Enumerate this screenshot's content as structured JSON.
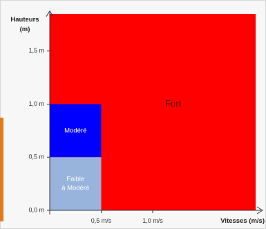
{
  "chart_data": {
    "type": "area",
    "ylabel_lines": [
      "Hauteurs",
      "(m)"
    ],
    "xlabel": "Vitesses (m/s)",
    "xlim": [
      0,
      2.0
    ],
    "ylim": [
      0,
      1.85
    ],
    "x_ticks": [
      {
        "value": 0.5,
        "label": "0,5 m/s"
      },
      {
        "value": 1.0,
        "label": "1,0 m/s"
      }
    ],
    "y_ticks": [
      {
        "value": 0.0,
        "label": "0,0 m"
      },
      {
        "value": 0.5,
        "label": "0,5 m"
      },
      {
        "value": 1.0,
        "label": "1,0 m"
      },
      {
        "value": 1.5,
        "label": "1,5 m"
      }
    ],
    "zones": [
      {
        "label": "Fort",
        "x": [
          0,
          2.0
        ],
        "y": [
          0,
          1.85
        ],
        "color": "#ff0000",
        "label_color": "#4a1010",
        "label_at": [
          1.2,
          1.0
        ]
      },
      {
        "label": "Modéré",
        "x": [
          0,
          0.5
        ],
        "y": [
          0.5,
          1.0
        ],
        "color": "#0000ff",
        "label_color": "#ffffff",
        "label_at": [
          0.25,
          0.75
        ]
      },
      {
        "label_lines": [
          "Faible",
          "à Modéré"
        ],
        "x": [
          0,
          0.5
        ],
        "y": [
          0,
          0.5
        ],
        "color": "#98b4dc",
        "label_color": "#ffffff",
        "label_at": [
          0.25,
          0.25
        ]
      }
    ],
    "grid": false
  }
}
